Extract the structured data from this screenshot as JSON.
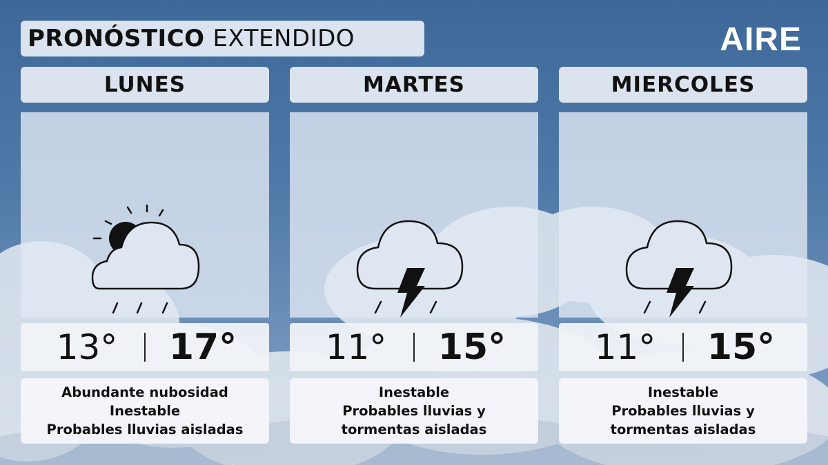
{
  "header": {
    "title_bold": "PRONÓSTICO",
    "title_light": "EXTENDIDO",
    "brand": "AIRE"
  },
  "days": [
    {
      "name": "LUNES",
      "icon": "partly-cloudy-rain-icon",
      "min": "13°",
      "max": "17°",
      "desc": [
        "Abundante nubosidad",
        "Inestable",
        "Probables lluvias aisladas"
      ]
    },
    {
      "name": "MARTES",
      "icon": "thunderstorm-icon",
      "min": "11°",
      "max": "15°",
      "desc": [
        "Inestable",
        "Probables lluvias y",
        "tormentas aisladas"
      ]
    },
    {
      "name": "MIERCOLES",
      "icon": "thunderstorm-icon",
      "min": "11°",
      "max": "15°",
      "desc": [
        "Inestable",
        "Probables lluvias y",
        "tormentas aisladas"
      ]
    }
  ]
}
